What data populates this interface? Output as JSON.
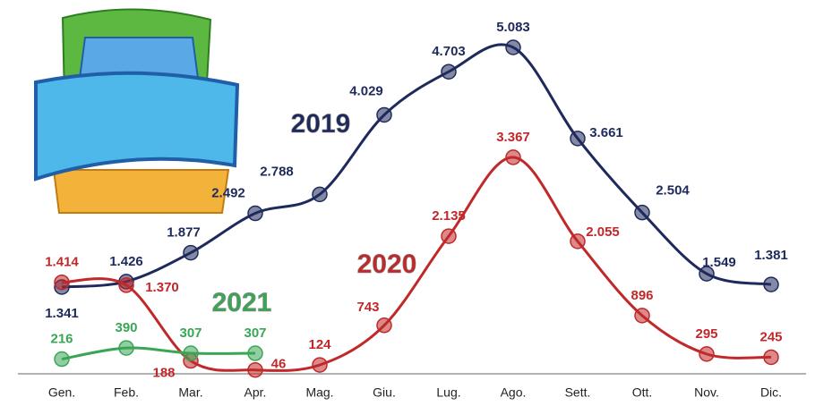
{
  "chart_data": {
    "type": "line",
    "categories": [
      "Gen.",
      "Feb.",
      "Mar.",
      "Apr.",
      "Mag.",
      "Giu.",
      "Lug.",
      "Ago.",
      "Sett.",
      "Ott.",
      "Nov.",
      "Dic."
    ],
    "series": [
      {
        "name": "2019",
        "color": "#1f2a5c",
        "values": [
          1341,
          1426,
          1877,
          2492,
          2788,
          4029,
          4703,
          5083,
          3661,
          2504,
          1549,
          1381
        ],
        "value_labels": [
          "1.341",
          "1.426",
          "1.877",
          "2.492",
          "2.788",
          "4.029",
          "4.703",
          "5.083",
          "3.661",
          "2.504",
          "1.549",
          "1.381"
        ]
      },
      {
        "name": "2020",
        "color": "#c0282a",
        "values": [
          1414,
          1370,
          188,
          46,
          124,
          743,
          2135,
          3367,
          2055,
          896,
          295,
          245
        ],
        "value_labels": [
          "1.414",
          "1.370",
          "188",
          "46",
          "124",
          "743",
          "2.135",
          "3.367",
          "2.055",
          "896",
          "295",
          "245"
        ]
      },
      {
        "name": "2021",
        "color": "#3aa655",
        "values": [
          216,
          390,
          307,
          307,
          null,
          null,
          null,
          null,
          null,
          null,
          null,
          null
        ],
        "value_labels": [
          "216",
          "390",
          "307",
          "307",
          null,
          null,
          null,
          null,
          null,
          null,
          null,
          null
        ]
      }
    ]
  }
}
